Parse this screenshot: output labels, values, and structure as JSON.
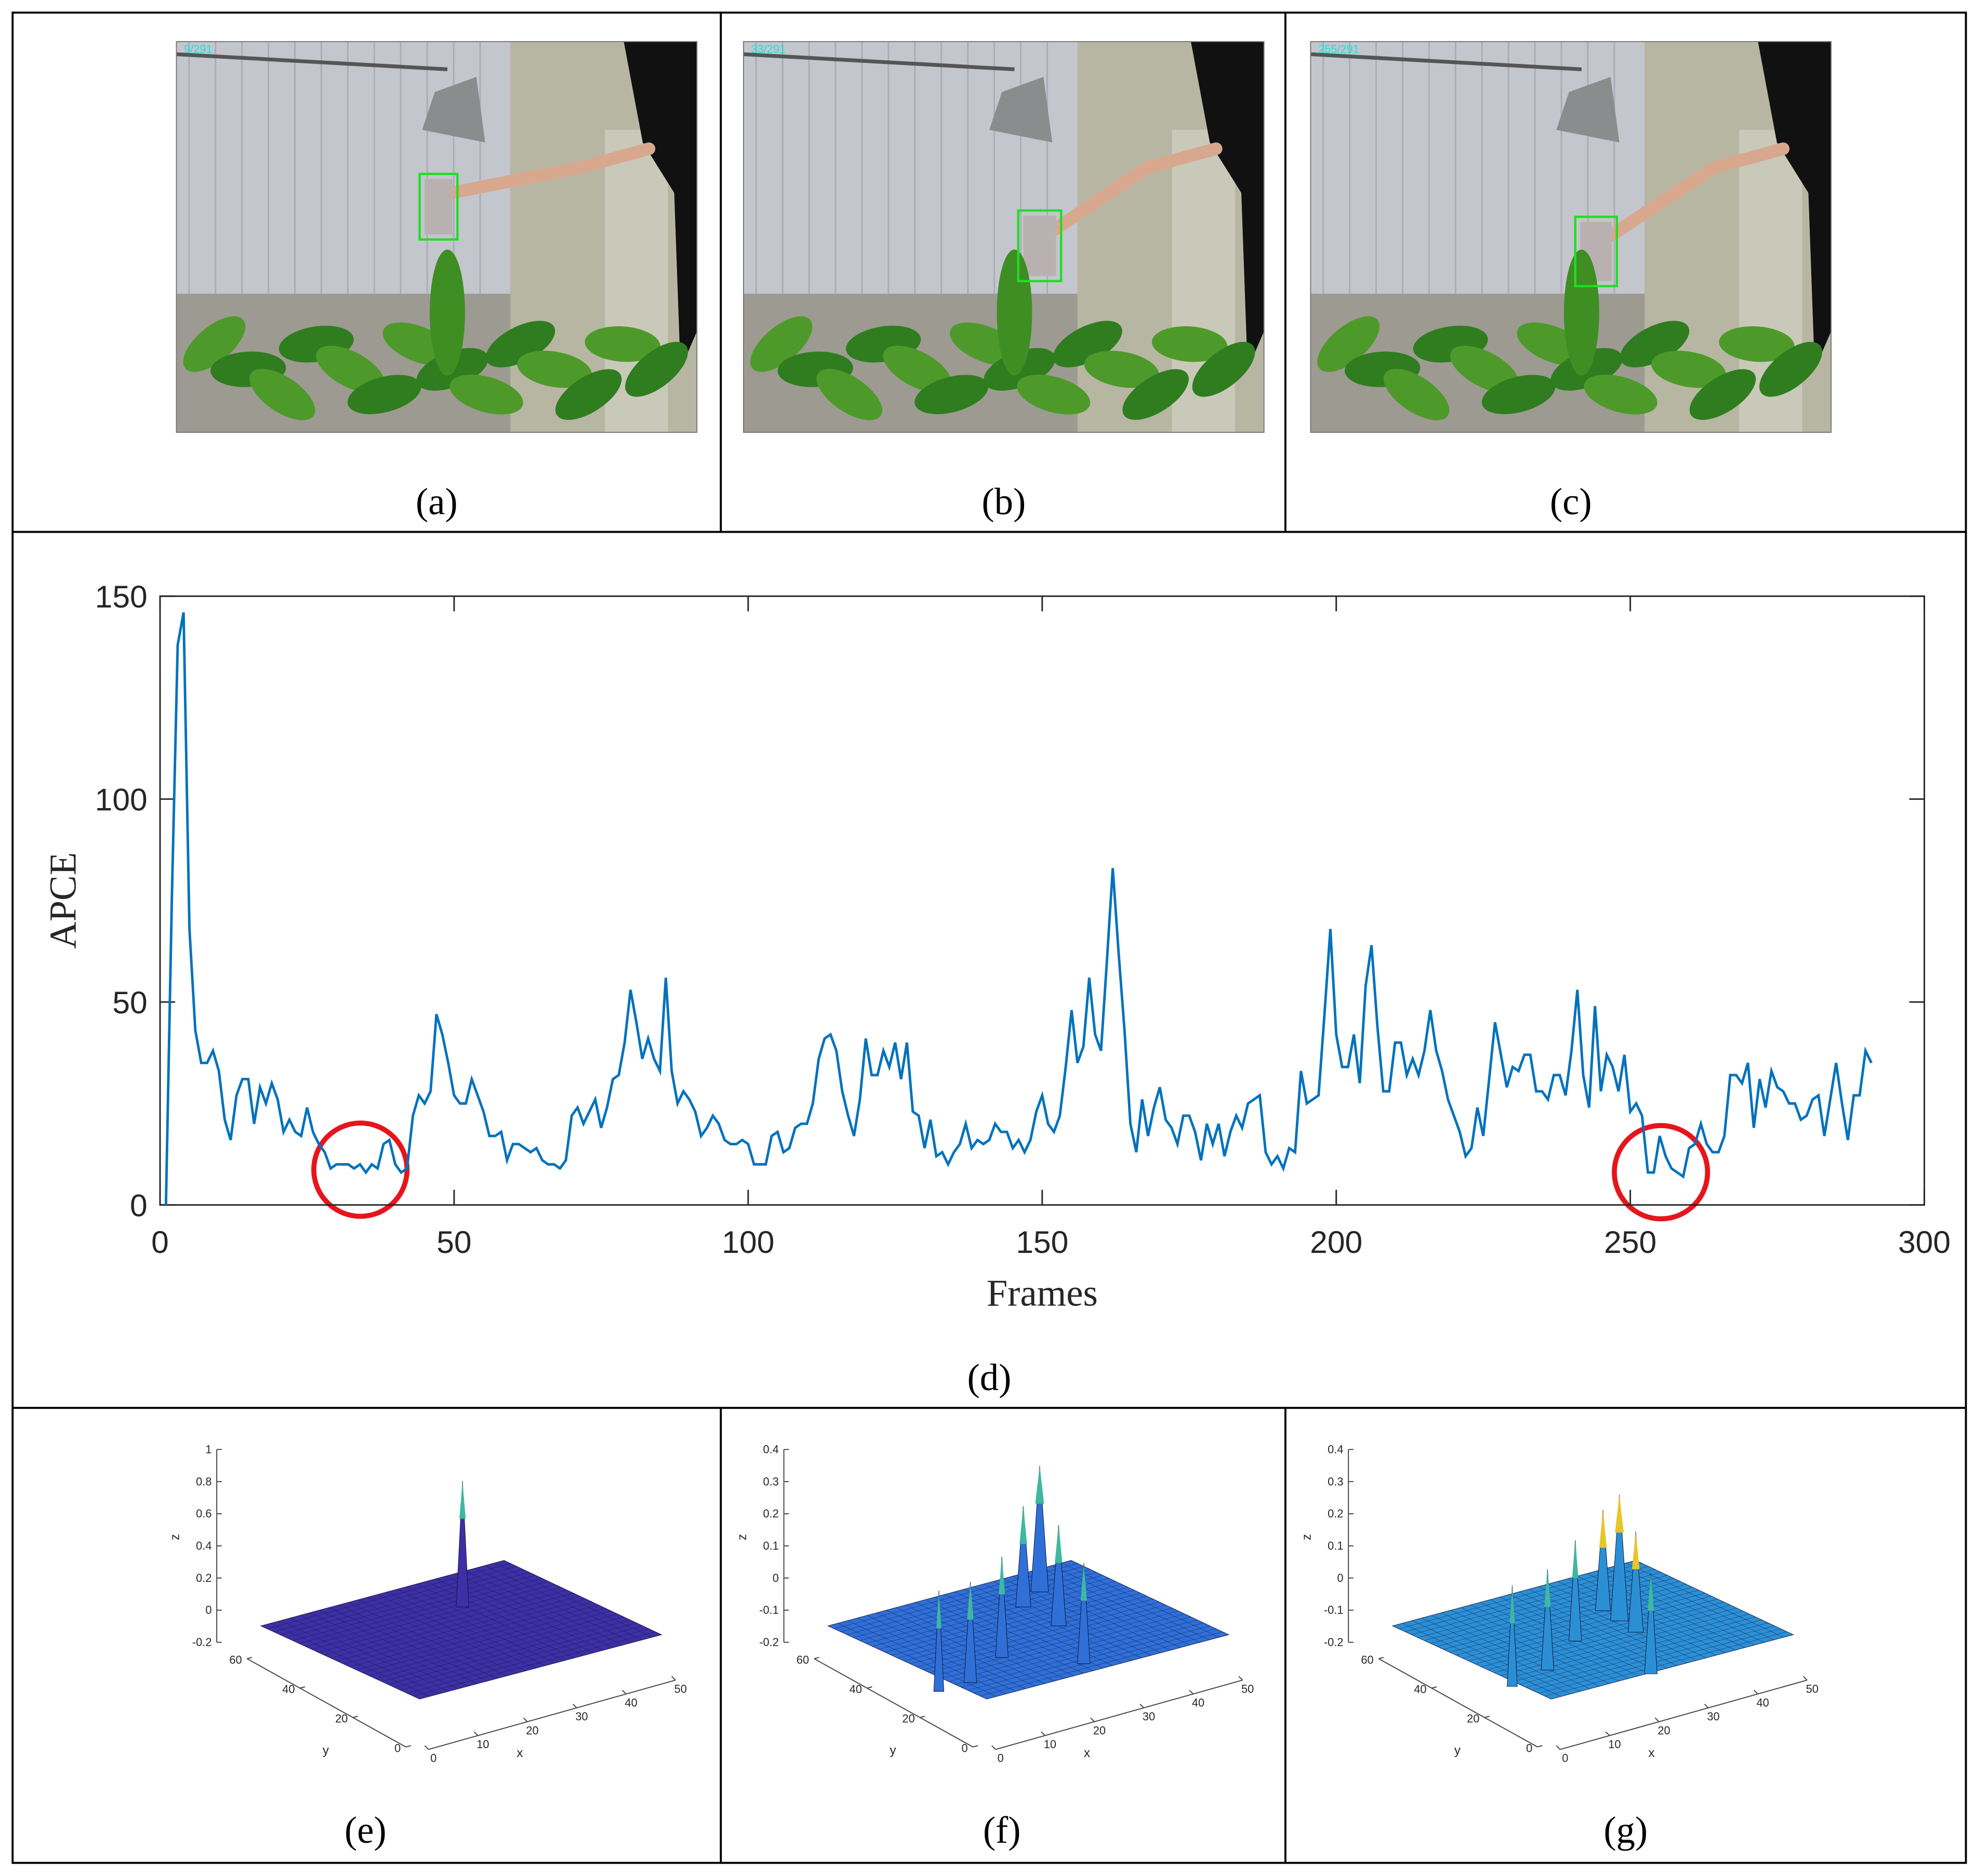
{
  "photos": [
    {
      "frame_text": "9/291",
      "label": "(a)"
    },
    {
      "frame_text": "33/291",
      "label": "(b)"
    },
    {
      "frame_text": "255/291",
      "label": "(c)"
    }
  ],
  "chart_data": {
    "type": "line",
    "label": "(d)",
    "x_label": "Frames",
    "y_label": "APCE",
    "color": "#0072bd",
    "x": [
      1,
      2,
      3,
      4,
      5,
      6,
      7,
      8,
      9,
      10,
      11,
      12,
      13,
      14,
      15,
      16,
      17,
      18,
      19,
      20,
      21,
      22,
      23,
      24,
      25,
      26,
      27,
      28,
      29,
      30,
      31,
      32,
      33,
      34,
      35,
      36,
      37,
      38,
      39,
      40,
      41,
      42,
      43,
      44,
      45,
      46,
      47,
      48,
      49,
      50,
      51,
      52,
      53,
      54,
      55,
      56,
      57,
      58,
      59,
      60,
      61,
      62,
      63,
      64,
      65,
      66,
      67,
      68,
      69,
      70,
      71,
      72,
      73,
      74,
      75,
      76,
      77,
      78,
      79,
      80,
      81,
      82,
      83,
      84,
      85,
      86,
      87,
      88,
      89,
      90,
      91,
      92,
      93,
      94,
      95,
      96,
      97,
      98,
      99,
      100,
      101,
      102,
      103,
      104,
      105,
      106,
      107,
      108,
      109,
      110,
      111,
      112,
      113,
      114,
      115,
      116,
      117,
      118,
      119,
      120,
      121,
      122,
      123,
      124,
      125,
      126,
      127,
      128,
      129,
      130,
      131,
      132,
      133,
      134,
      135,
      136,
      137,
      138,
      139,
      140,
      141,
      142,
      143,
      144,
      145,
      146,
      147,
      148,
      149,
      150,
      151,
      152,
      153,
      154,
      155,
      156,
      157,
      158,
      159,
      160,
      161,
      162,
      163,
      164,
      165,
      166,
      167,
      168,
      169,
      170,
      171,
      172,
      173,
      174,
      175,
      176,
      177,
      178,
      179,
      180,
      181,
      182,
      183,
      184,
      185,
      186,
      187,
      188,
      189,
      190,
      191,
      192,
      193,
      194,
      195,
      196,
      197,
      198,
      199,
      200,
      201,
      202,
      203,
      204,
      205,
      206,
      207,
      208,
      209,
      210,
      211,
      212,
      213,
      214,
      215,
      216,
      217,
      218,
      219,
      220,
      221,
      222,
      223,
      224,
      225,
      226,
      227,
      228,
      229,
      230,
      231,
      232,
      233,
      234,
      235,
      236,
      237,
      238,
      239,
      240,
      241,
      242,
      243,
      244,
      245,
      246,
      247,
      248,
      249,
      250,
      251,
      252,
      253,
      254,
      255,
      256,
      257,
      258,
      259,
      260,
      261,
      262,
      263,
      264,
      265,
      266,
      267,
      268,
      269,
      270,
      271,
      272,
      273,
      274,
      275,
      276,
      277,
      278,
      279,
      280,
      281,
      282,
      283,
      284,
      285,
      286,
      287,
      288,
      289,
      290,
      291
    ],
    "values": [
      0,
      75,
      138,
      146,
      68,
      43,
      35,
      35,
      38,
      33,
      21,
      16,
      27,
      31,
      31,
      20,
      29,
      25,
      30,
      26,
      18,
      21,
      18,
      17,
      24,
      18,
      15,
      13,
      9,
      10,
      10,
      10,
      9,
      10,
      8,
      10,
      9,
      15,
      16,
      10,
      8,
      9,
      22,
      27,
      25,
      28,
      47,
      42,
      35,
      27,
      25,
      25,
      31,
      27,
      23,
      17,
      17,
      18,
      11,
      15,
      15,
      14,
      13,
      14,
      11,
      10,
      10,
      9,
      11,
      22,
      24,
      20,
      23,
      26,
      19,
      24,
      31,
      32,
      40,
      53,
      45,
      36,
      41,
      36,
      33,
      56,
      33,
      25,
      28,
      26,
      23,
      17,
      19,
      22,
      20,
      16,
      15,
      15,
      16,
      15,
      10,
      10,
      10,
      17,
      18,
      13,
      14,
      19,
      20,
      20,
      25,
      36,
      41,
      42,
      38,
      28,
      22,
      17,
      26,
      41,
      32,
      32,
      38,
      34,
      40,
      31,
      40,
      23,
      22,
      14,
      21,
      12,
      13,
      10,
      13,
      15,
      20,
      14,
      16,
      15,
      16,
      20,
      18,
      18,
      14,
      16,
      13,
      16,
      23,
      27,
      20,
      18,
      22,
      34,
      48,
      35,
      39,
      56,
      42,
      38,
      60,
      83,
      62,
      43,
      20,
      13,
      26,
      17,
      24,
      29,
      21,
      19,
      15,
      22,
      22,
      18,
      11,
      20,
      15,
      20,
      12,
      18,
      22,
      19,
      25,
      26,
      27,
      13,
      10,
      12,
      9,
      14,
      13,
      33,
      25,
      26,
      27,
      47,
      68,
      42,
      34,
      34,
      42,
      30,
      54,
      64,
      44,
      28,
      28,
      40,
      40,
      32,
      36,
      32,
      38,
      48,
      38,
      33,
      26,
      22,
      18,
      12,
      14,
      24,
      17,
      31,
      45,
      37,
      29,
      34,
      33,
      37,
      37,
      28,
      28,
      26,
      32,
      32,
      27,
      38,
      53,
      32,
      24,
      49,
      28,
      37,
      34,
      28,
      37,
      23,
      25,
      22,
      8,
      8,
      17,
      12,
      9,
      8,
      7,
      14,
      15,
      20,
      15,
      13,
      13,
      17,
      32,
      32,
      30,
      35,
      19,
      31,
      24,
      33,
      29,
      28,
      25,
      25,
      21,
      22,
      26,
      27,
      17,
      26,
      35,
      25,
      16,
      27,
      27,
      38,
      35
    ],
    "xlim": [
      0,
      300
    ],
    "ylim": [
      0,
      150
    ],
    "xticks": [
      0,
      50,
      100,
      150,
      200,
      250,
      300
    ],
    "yticks": [
      0,
      50,
      100,
      150
    ]
  },
  "surfaces": [
    {
      "label": "(e)",
      "color": "#3d2fa5",
      "zlabel": "z",
      "ylabel": "y",
      "xlabel": "x",
      "zlim": [
        -0.2,
        1
      ],
      "zticks": [
        1,
        0.8,
        0.6,
        0.4,
        0.2,
        0,
        -0.2
      ],
      "ylim": [
        0,
        60
      ],
      "yticks": [
        60,
        40,
        20,
        0
      ],
      "xlim": [
        0,
        50
      ],
      "xticks": [
        0,
        10,
        20,
        30,
        40,
        50
      ]
    },
    {
      "label": "(f)",
      "color": "#2f6fd8",
      "zlabel": "z",
      "ylabel": "y",
      "xlabel": "x",
      "zlim": [
        -0.2,
        0.4
      ],
      "zticks": [
        0.4,
        0.3,
        0.2,
        0.1,
        0,
        -0.1,
        -0.2
      ],
      "ylim": [
        0,
        60
      ],
      "yticks": [
        60,
        40,
        20,
        0
      ],
      "xlim": [
        0,
        50
      ],
      "xticks": [
        0,
        10,
        20,
        30,
        40,
        50
      ]
    },
    {
      "label": "(g)",
      "color": "#2b8fd6",
      "zlabel": "z",
      "ylabel": "y",
      "xlabel": "x",
      "zlim": [
        -0.2,
        0.4
      ],
      "zticks": [
        0.4,
        0.3,
        0.2,
        0.1,
        0,
        -0.1,
        -0.2
      ],
      "ylim": [
        0,
        60
      ],
      "yticks": [
        60,
        40,
        20,
        0
      ],
      "xlim": [
        0,
        50
      ],
      "xticks": [
        0,
        10,
        20,
        30,
        40,
        50
      ]
    }
  ]
}
